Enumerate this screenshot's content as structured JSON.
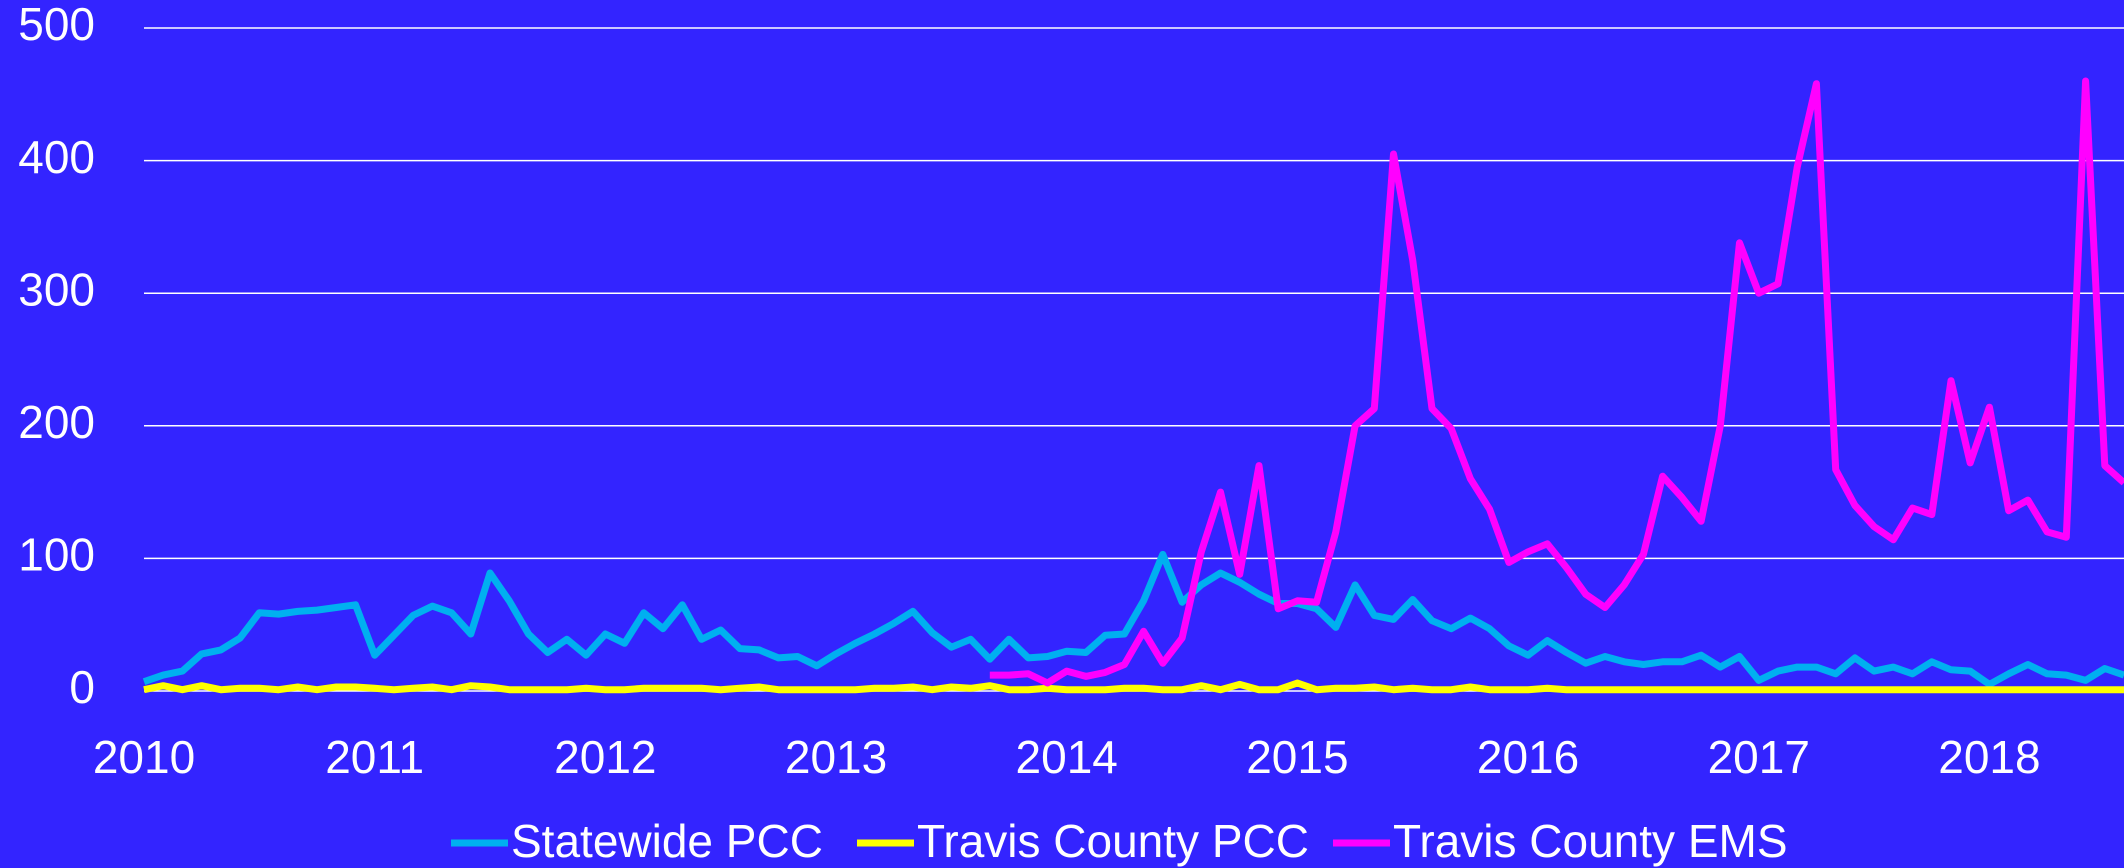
{
  "chart_data": {
    "type": "line",
    "x": [
      0,
      1,
      2,
      3,
      4,
      5,
      6,
      7,
      8,
      9,
      10,
      11,
      12,
      13,
      14,
      15,
      16,
      17,
      18,
      19,
      20,
      21,
      22,
      23,
      24,
      25,
      26,
      27,
      28,
      29,
      30,
      31,
      32,
      33,
      34,
      35,
      36,
      37,
      38,
      39,
      40,
      41,
      42,
      43,
      44,
      45,
      46,
      47,
      48,
      49,
      50,
      51,
      52,
      53,
      54,
      55,
      56,
      57,
      58,
      59,
      60,
      61,
      62,
      63,
      64,
      65,
      66,
      67,
      68,
      69,
      70,
      71,
      72,
      73,
      74,
      75,
      76,
      77,
      78,
      79,
      80,
      81,
      82,
      83,
      84,
      85,
      86,
      87,
      88,
      89,
      90,
      91,
      92,
      93,
      94,
      95,
      96,
      97,
      98,
      99,
      100,
      101,
      102,
      103
    ],
    "xlim": [
      0,
      103
    ],
    "xticks": [
      {
        "value": 0,
        "label": "2010"
      },
      {
        "value": 12,
        "label": "2011"
      },
      {
        "value": 24,
        "label": "2012"
      },
      {
        "value": 36,
        "label": "2013"
      },
      {
        "value": 48,
        "label": "2014"
      },
      {
        "value": 60,
        "label": "2015"
      },
      {
        "value": 72,
        "label": "2016"
      },
      {
        "value": 84,
        "label": "2017"
      },
      {
        "value": 96,
        "label": "2018"
      }
    ],
    "ylim": [
      0,
      500
    ],
    "yticks": [
      0,
      100,
      200,
      300,
      400,
      500
    ],
    "grid": true,
    "legend": "bottom",
    "series": [
      {
        "name": "Statewide PCC",
        "color": "#00b0f0",
        "values": [
          7,
          12,
          15,
          28,
          31,
          40,
          59,
          58,
          60,
          61,
          63,
          65,
          27,
          42,
          57,
          64,
          59,
          43,
          89,
          68,
          43,
          29,
          39,
          27,
          43,
          36,
          59,
          47,
          65,
          39,
          46,
          32,
          31,
          25,
          26,
          19,
          28,
          36,
          43,
          51,
          60,
          44,
          33,
          39,
          24,
          39,
          25,
          26,
          30,
          29,
          42,
          43,
          68,
          103,
          67,
          80,
          89,
          82,
          73,
          66,
          66,
          62,
          48,
          80,
          57,
          54,
          69,
          53,
          47,
          55,
          47,
          34,
          27,
          38,
          29,
          21,
          26,
          22,
          20,
          22,
          22,
          27,
          18,
          26,
          8,
          15,
          18,
          18,
          13,
          25,
          15,
          18,
          13,
          22,
          16,
          15,
          5,
          13,
          20,
          13,
          12,
          8,
          17,
          12
        ]
      },
      {
        "name": "Travis County PCC",
        "color": "#ffff00",
        "values": [
          1,
          4,
          1,
          4,
          1,
          2,
          2,
          1,
          3,
          1,
          3,
          3,
          2,
          1,
          2,
          3,
          1,
          4,
          3,
          1,
          1,
          1,
          1,
          2,
          1,
          1,
          2,
          2,
          2,
          2,
          1,
          2,
          3,
          1,
          1,
          1,
          1,
          1,
          2,
          2,
          3,
          1,
          3,
          2,
          4,
          1,
          1,
          2,
          1,
          1,
          1,
          2,
          2,
          1,
          1,
          4,
          1,
          5,
          1,
          1,
          6,
          1,
          2,
          2,
          3,
          1,
          2,
          1,
          1,
          3,
          1,
          1,
          1,
          2,
          1,
          1,
          1,
          1,
          1,
          1,
          1,
          1,
          1,
          1,
          1,
          1,
          1,
          1,
          1,
          1,
          1,
          1,
          1,
          1,
          1,
          1,
          1,
          1,
          1,
          1,
          1,
          1,
          1,
          1
        ]
      },
      {
        "name": "Travis County EMS",
        "color": "#ff00ff",
        "values": [
          null,
          null,
          null,
          null,
          null,
          null,
          null,
          null,
          null,
          null,
          null,
          null,
          null,
          null,
          null,
          null,
          null,
          null,
          null,
          null,
          null,
          null,
          null,
          null,
          null,
          null,
          null,
          null,
          null,
          null,
          null,
          null,
          null,
          null,
          null,
          null,
          null,
          null,
          null,
          null,
          null,
          null,
          null,
          null,
          12,
          12,
          13,
          6,
          15,
          11,
          14,
          20,
          45,
          21,
          40,
          105,
          150,
          88,
          170,
          62,
          68,
          67,
          120,
          200,
          213,
          405,
          325,
          213,
          198,
          160,
          137,
          97,
          105,
          111,
          93,
          73,
          63,
          80,
          103,
          162,
          146,
          128,
          200,
          338,
          300,
          307,
          395,
          458,
          167,
          140,
          124,
          114,
          138,
          133,
          234,
          172,
          214,
          136,
          144,
          120,
          116,
          460,
          170,
          157
        ]
      }
    ]
  }
}
